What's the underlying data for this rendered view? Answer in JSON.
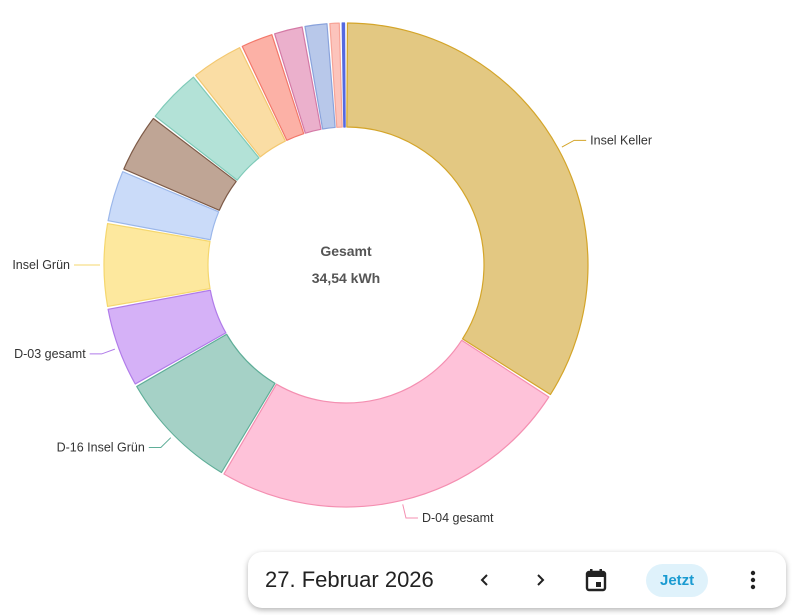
{
  "chart_data": {
    "type": "pie",
    "donut": true,
    "unit": "kWh",
    "center_title": "Gesamt",
    "center_value": "34,54 kWh",
    "slices": [
      {
        "label": "Insel Keller",
        "value": 11.78,
        "fill": "#e3c882",
        "stroke": "#d4a52a"
      },
      {
        "label": "D-04 gesamt",
        "value": 8.44,
        "fill": "#fec2d9",
        "stroke": "#f48fb1"
      },
      {
        "label": "D-16 Insel Grün",
        "value": 2.84,
        "fill": "#a5d1c6",
        "stroke": "#5fae98"
      },
      {
        "label": "D-03 gesamt",
        "value": 1.88,
        "fill": "#d5b1f7",
        "stroke": "#b07be9"
      },
      {
        "label": "Insel Grün",
        "value": 1.96,
        "fill": "#fde89e",
        "stroke": "#f5d76e"
      },
      {
        "label": "",
        "value": 1.23,
        "fill": "#cadbf9",
        "stroke": "#9bb7ea"
      },
      {
        "label": "",
        "value": 1.4,
        "fill": "#bfa595",
        "stroke": "#7d5a47"
      },
      {
        "label": "",
        "value": 1.31,
        "fill": "#b3e2d7",
        "stroke": "#7ecab8"
      },
      {
        "label": "",
        "value": 1.25,
        "fill": "#fadda4",
        "stroke": "#f3c870"
      },
      {
        "label": "",
        "value": 0.79,
        "fill": "#fcb1a6",
        "stroke": "#f3786a"
      },
      {
        "label": "",
        "value": 0.71,
        "fill": "#ebb0cc",
        "stroke": "#d47aa6"
      },
      {
        "label": "",
        "value": 0.57,
        "fill": "#b8c8ea",
        "stroke": "#8aa3dc"
      },
      {
        "label": "",
        "value": 0.28,
        "fill": "#fcc4bc",
        "stroke": "#f7a497"
      },
      {
        "label": "",
        "value": 0.12,
        "fill": "#5569e0",
        "stroke": "#5569e0"
      }
    ]
  },
  "date_bar": {
    "date": "27. Februar 2026",
    "prev_icon": "chevron-left-icon",
    "next_icon": "chevron-right-icon",
    "calendar_icon": "calendar-icon",
    "now_label": "Jetzt",
    "menu_icon": "more-vertical-icon"
  }
}
